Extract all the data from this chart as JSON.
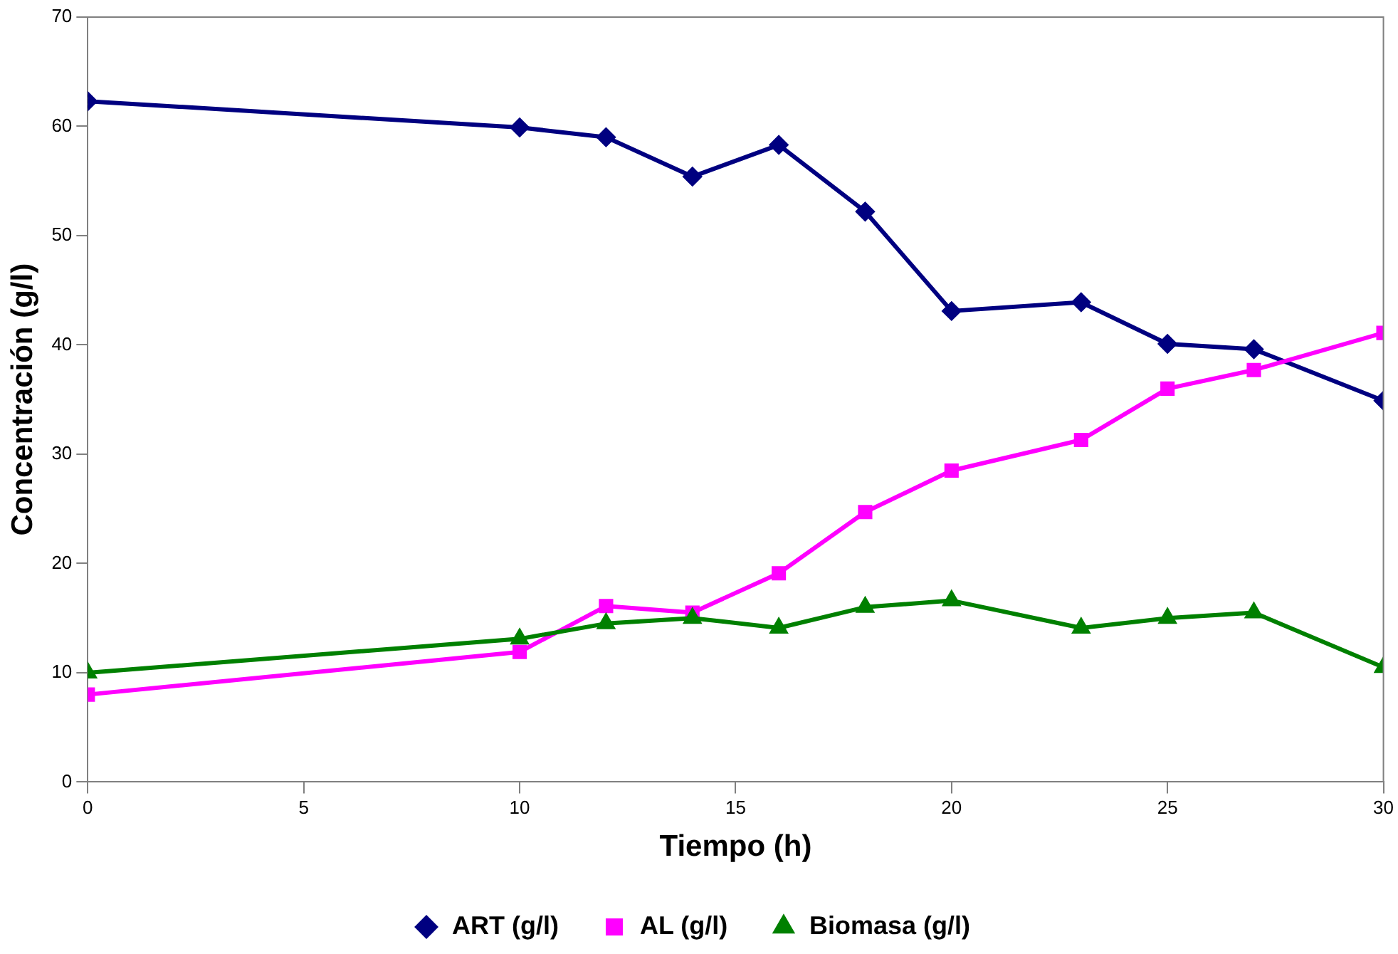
{
  "chart_data": {
    "type": "line",
    "xlabel": "Tiempo (h)",
    "ylabel": "Concentración (g/l)",
    "x": [
      0,
      10,
      12,
      14,
      16,
      18,
      20,
      23,
      25,
      27,
      30
    ],
    "series": [
      {
        "name": "ART (g/l)",
        "color": "#000080",
        "marker": "diamond",
        "values": [
          62.3,
          59.9,
          59.0,
          55.4,
          58.3,
          52.2,
          43.1,
          43.9,
          40.1,
          39.6,
          34.9
        ]
      },
      {
        "name": "AL (g/l)",
        "color": "#ff00ff",
        "marker": "square",
        "values": [
          8.0,
          11.9,
          16.1,
          15.5,
          19.1,
          24.7,
          28.5,
          31.3,
          36.0,
          37.7,
          41.1
        ]
      },
      {
        "name": "Biomasa (g/l)",
        "color": "#008000",
        "marker": "triangle",
        "values": [
          10.0,
          13.1,
          14.5,
          15.0,
          14.1,
          16.0,
          16.6,
          14.1,
          15.0,
          15.5,
          10.5
        ]
      }
    ],
    "xlim": [
      0,
      30
    ],
    "xticks": [
      0,
      5,
      10,
      15,
      20,
      25,
      30
    ],
    "ylim": [
      0,
      70
    ],
    "yticks": [
      0,
      10,
      20,
      30,
      40,
      50,
      60,
      70
    ],
    "grid": false,
    "legend": "bottom",
    "line_style": "solid"
  }
}
